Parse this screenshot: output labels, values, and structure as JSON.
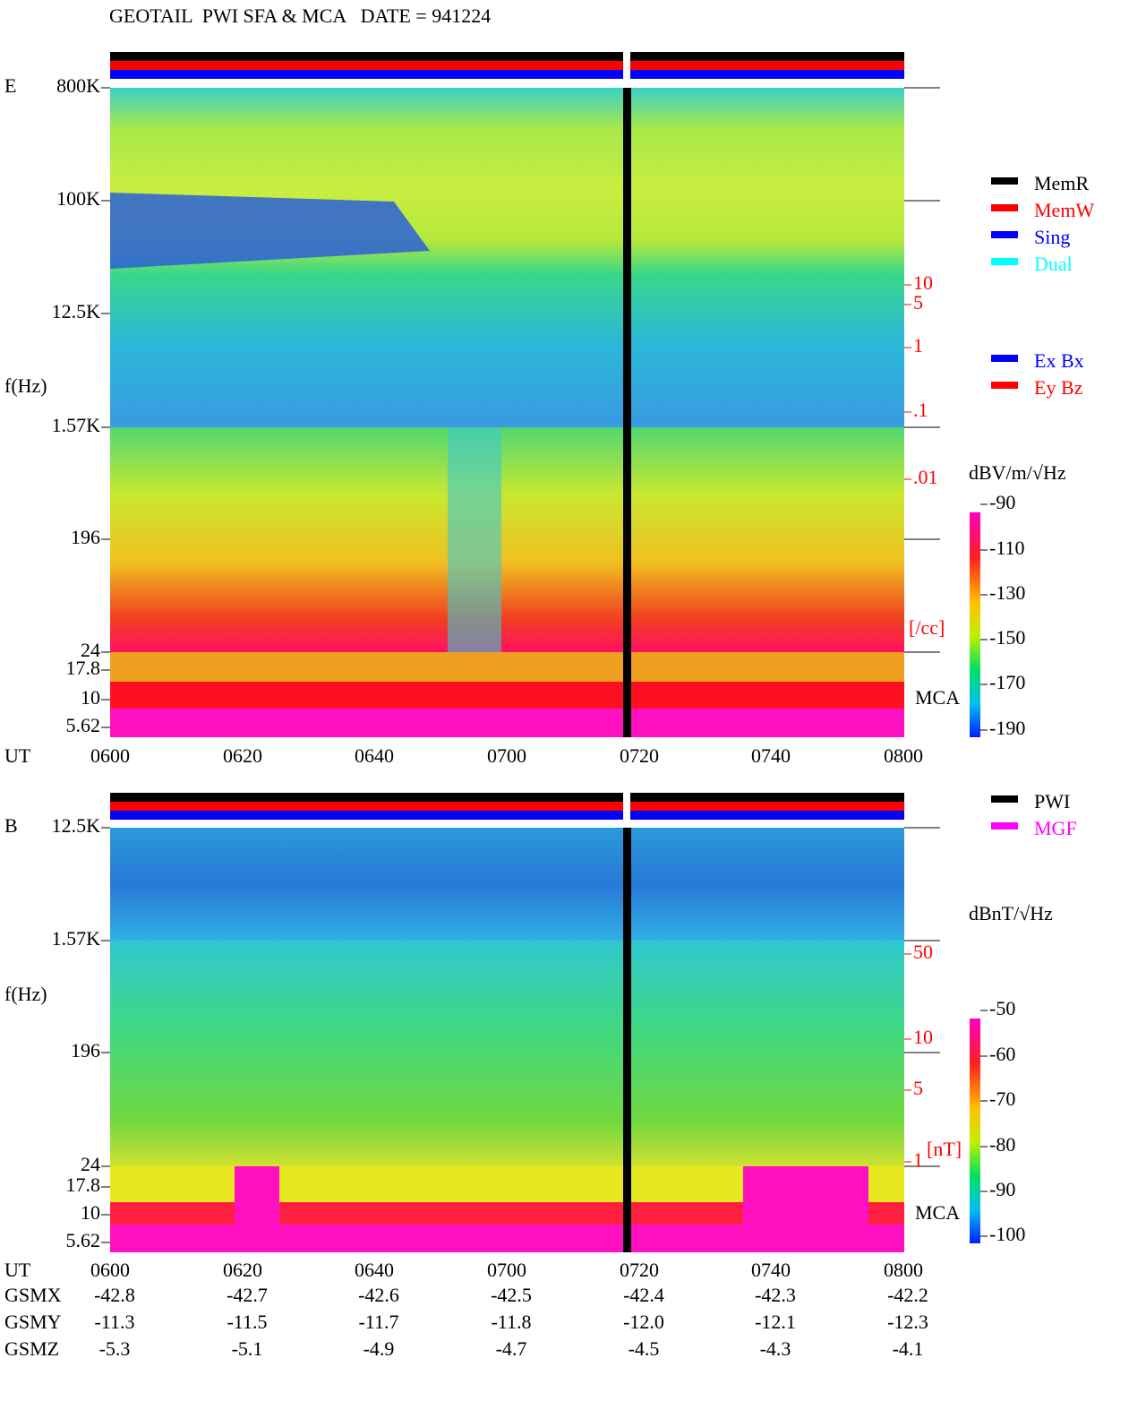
{
  "header": {
    "title": "GEOTAIL  PWI SFA & MCA   DATE = 941224"
  },
  "panels": [
    {
      "label": "E",
      "y_label": "f(Hz)",
      "x_label": "UT",
      "yticks": [
        "800K",
        "100K",
        "12.5K",
        "1.57K",
        "196",
        "24",
        "17.8",
        "10",
        "5.62"
      ],
      "xticks": [
        "0600",
        "0620",
        "0640",
        "0700",
        "0720",
        "0740",
        "0800"
      ],
      "right_ticks": [
        "10",
        "5",
        "1",
        ".1",
        ".01"
      ],
      "right_unit": "[/cc]",
      "mca_label": "MCA",
      "colorbar": {
        "unit": "dBV/m/√Hz",
        "ticks": [
          "-90",
          "-110",
          "-130",
          "-150",
          "-170",
          "-190"
        ]
      },
      "legends": [
        [
          {
            "name": "MemR",
            "color": "#000000"
          },
          {
            "name": "MemW",
            "color": "#ff0000"
          },
          {
            "name": "Sing",
            "color": "#0000ff"
          },
          {
            "name": "Dual",
            "color": "#00ffff"
          }
        ],
        [
          {
            "name": "Ex Bx",
            "color": "#0000ff"
          },
          {
            "name": "Ey Bz",
            "color": "#ff0000"
          }
        ]
      ]
    },
    {
      "label": "B",
      "y_label": "f(Hz)",
      "x_label": "UT",
      "yticks": [
        "12.5K",
        "1.57K",
        "196",
        "24",
        "17.8",
        "10",
        "5.62"
      ],
      "xticks": [
        "0600",
        "0620",
        "0640",
        "0700",
        "0720",
        "0740",
        "0800"
      ],
      "right_ticks": [
        "50",
        "10",
        "5",
        "1"
      ],
      "right_unit": "[nT]",
      "mca_label": "MCA",
      "colorbar": {
        "unit": "dBnT/√Hz",
        "ticks": [
          "-50",
          "-60",
          "-70",
          "-80",
          "-90",
          "-100"
        ]
      },
      "legends": [
        [
          {
            "name": "PWI",
            "color": "#000000"
          },
          {
            "name": "MGF",
            "color": "#ff00ff"
          }
        ]
      ]
    }
  ],
  "orbit": [
    {
      "label": "GSMX",
      "values": [
        "-42.8",
        "-42.7",
        "-42.6",
        "-42.5",
        "-42.4",
        "-42.3",
        "-42.2"
      ]
    },
    {
      "label": "GSMY",
      "values": [
        "-11.3",
        "-11.5",
        "-11.7",
        "-11.8",
        "-12.0",
        "-12.1",
        "-12.3"
      ]
    },
    {
      "label": "GSMZ",
      "values": [
        "-5.3",
        "-5.1",
        "-4.9",
        "-4.7",
        "-4.5",
        "-4.3",
        "-4.1"
      ]
    }
  ]
}
